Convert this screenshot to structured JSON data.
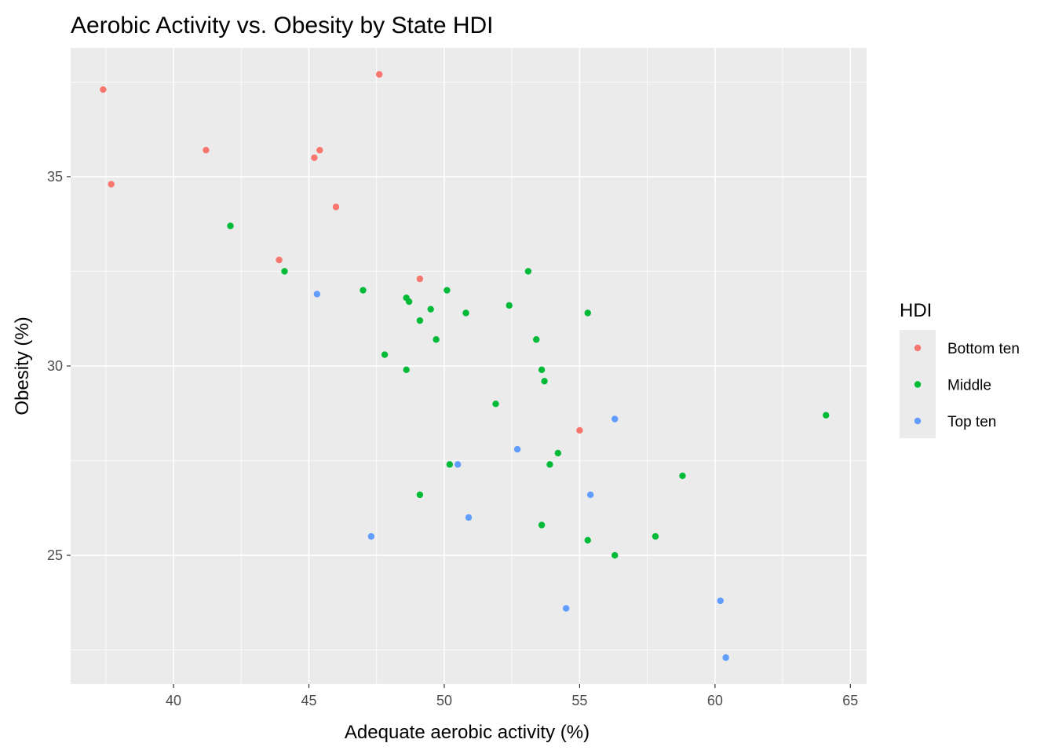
{
  "chart_data": {
    "type": "scatter",
    "title": "Aerobic Activity vs. Obesity by State HDI",
    "xlabel": "Adequate aerobic activity (%)",
    "ylabel": "Obesity (%)",
    "xlim": [
      36.2,
      65.6
    ],
    "ylim": [
      21.6,
      38.4
    ],
    "x_ticks": [
      40,
      45,
      50,
      55,
      60,
      65
    ],
    "y_ticks": [
      25,
      30,
      35
    ],
    "grid": true,
    "legend": {
      "title": "HDI",
      "position": "right"
    },
    "series": [
      {
        "name": "Bottom ten",
        "color": "#F8766D",
        "points": [
          {
            "x": 37.4,
            "y": 37.3
          },
          {
            "x": 37.7,
            "y": 34.8
          },
          {
            "x": 41.2,
            "y": 35.7
          },
          {
            "x": 43.9,
            "y": 32.8
          },
          {
            "x": 45.2,
            "y": 35.5
          },
          {
            "x": 45.4,
            "y": 35.7
          },
          {
            "x": 46.0,
            "y": 34.2
          },
          {
            "x": 47.6,
            "y": 37.7
          },
          {
            "x": 49.1,
            "y": 32.3
          },
          {
            "x": 55.0,
            "y": 28.3
          }
        ]
      },
      {
        "name": "Middle",
        "color": "#00BA38",
        "points": [
          {
            "x": 42.1,
            "y": 33.7
          },
          {
            "x": 44.1,
            "y": 32.5
          },
          {
            "x": 47.0,
            "y": 32.0
          },
          {
            "x": 47.8,
            "y": 30.3
          },
          {
            "x": 48.6,
            "y": 31.8
          },
          {
            "x": 48.7,
            "y": 31.7
          },
          {
            "x": 48.6,
            "y": 29.9
          },
          {
            "x": 49.1,
            "y": 31.2
          },
          {
            "x": 49.1,
            "y": 26.6
          },
          {
            "x": 49.5,
            "y": 31.5
          },
          {
            "x": 49.7,
            "y": 30.7
          },
          {
            "x": 50.1,
            "y": 32.0
          },
          {
            "x": 50.2,
            "y": 27.4
          },
          {
            "x": 50.8,
            "y": 31.4
          },
          {
            "x": 51.9,
            "y": 29.0
          },
          {
            "x": 52.4,
            "y": 31.6
          },
          {
            "x": 53.1,
            "y": 32.5
          },
          {
            "x": 53.4,
            "y": 30.7
          },
          {
            "x": 53.6,
            "y": 29.9
          },
          {
            "x": 53.7,
            "y": 29.6
          },
          {
            "x": 53.6,
            "y": 25.8
          },
          {
            "x": 53.9,
            "y": 27.4
          },
          {
            "x": 54.2,
            "y": 27.7
          },
          {
            "x": 55.3,
            "y": 31.4
          },
          {
            "x": 55.3,
            "y": 25.4
          },
          {
            "x": 56.3,
            "y": 25.0
          },
          {
            "x": 57.8,
            "y": 25.5
          },
          {
            "x": 58.8,
            "y": 27.1
          },
          {
            "x": 64.1,
            "y": 28.7
          }
        ]
      },
      {
        "name": "Top ten",
        "color": "#619CFF",
        "points": [
          {
            "x": 45.3,
            "y": 31.9
          },
          {
            "x": 47.3,
            "y": 25.5
          },
          {
            "x": 50.5,
            "y": 27.4
          },
          {
            "x": 50.9,
            "y": 26.0
          },
          {
            "x": 52.7,
            "y": 27.8
          },
          {
            "x": 54.5,
            "y": 23.6
          },
          {
            "x": 55.4,
            "y": 26.6
          },
          {
            "x": 56.3,
            "y": 28.6
          },
          {
            "x": 60.2,
            "y": 23.8
          },
          {
            "x": 60.4,
            "y": 22.3
          }
        ]
      }
    ]
  }
}
